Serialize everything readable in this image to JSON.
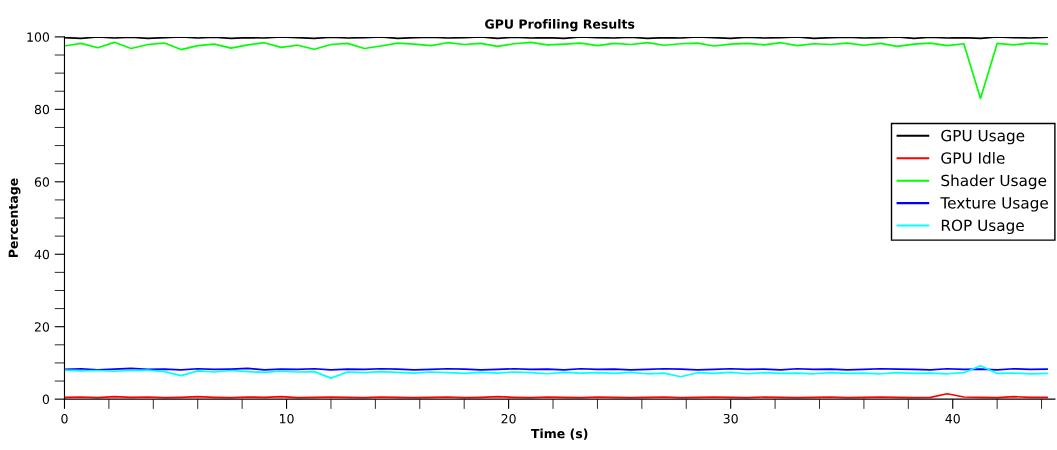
{
  "chart_data": {
    "type": "line",
    "title": "GPU Profiling Results",
    "xlabel": "Time (s)",
    "ylabel": "Percentage",
    "x": [
      0,
      0.75,
      1.5,
      2.25,
      3,
      3.75,
      4.5,
      5.25,
      6,
      6.75,
      7.5,
      8.25,
      9,
      9.75,
      10.5,
      11.25,
      12,
      12.75,
      13.5,
      14.25,
      15,
      15.75,
      16.5,
      17.25,
      18,
      18.75,
      19.5,
      20.25,
      21,
      21.75,
      22.5,
      23.25,
      24,
      24.75,
      25.5,
      26.25,
      27,
      27.75,
      28.5,
      29.25,
      30,
      30.75,
      31.5,
      32.25,
      33,
      33.75,
      34.5,
      35.25,
      36,
      36.75,
      37.5,
      38.25,
      39,
      39.75,
      40.5,
      41.25,
      42,
      42.75,
      43.5,
      44.25
    ],
    "series": [
      {
        "name": "GPU Usage",
        "color": "#000000",
        "values": [
          99.8,
          99.6,
          100,
          99.7,
          99.9,
          99.6,
          99.8,
          100,
          99.7,
          99.9,
          99.6,
          99.8,
          99.7,
          100,
          99.8,
          99.6,
          99.9,
          99.7,
          99.8,
          100,
          99.6,
          99.8,
          99.9,
          99.7,
          99.8,
          100,
          99.6,
          99.9,
          99.7,
          99.8,
          99.6,
          100,
          99.8,
          99.7,
          99.9,
          99.6,
          99.8,
          99.7,
          100,
          99.8,
          99.6,
          99.9,
          99.7,
          99.8,
          100,
          99.6,
          99.8,
          99.9,
          99.7,
          99.8,
          100,
          99.6,
          99.9,
          99.7,
          99.8,
          99.6,
          100,
          99.8,
          99.7,
          99.9
        ]
      },
      {
        "name": "GPU Idle",
        "color": "#ff0000",
        "values": [
          0.5,
          0.6,
          0.4,
          0.7,
          0.5,
          0.6,
          0.4,
          0.5,
          0.7,
          0.5,
          0.4,
          0.6,
          0.5,
          0.7,
          0.4,
          0.5,
          0.6,
          0.5,
          0.4,
          0.6,
          0.5,
          0.4,
          0.5,
          0.6,
          0.4,
          0.5,
          0.7,
          0.5,
          0.4,
          0.6,
          0.5,
          0.4,
          0.6,
          0.5,
          0.4,
          0.5,
          0.6,
          0.4,
          0.5,
          0.6,
          0.5,
          0.4,
          0.6,
          0.5,
          0.4,
          0.5,
          0.6,
          0.4,
          0.5,
          0.6,
          0.5,
          0.4,
          0.5,
          1.5,
          0.6,
          0.5,
          0.4,
          0.7,
          0.5,
          0.5
        ]
      },
      {
        "name": "Shader Usage",
        "color": "#00ff00",
        "values": [
          97.5,
          98.2,
          97.0,
          98.5,
          96.8,
          97.9,
          98.3,
          96.5,
          97.6,
          98.0,
          96.9,
          97.8,
          98.4,
          97.1,
          97.7,
          96.6,
          97.9,
          98.2,
          96.8,
          97.5,
          98.3,
          98.0,
          97.6,
          98.4,
          97.9,
          98.2,
          97.4,
          98.1,
          98.5,
          97.8,
          98.0,
          98.3,
          97.6,
          98.2,
          97.9,
          98.4,
          97.7,
          98.1,
          98.3,
          97.5,
          98.0,
          98.2,
          97.8,
          98.4,
          97.6,
          98.1,
          97.9,
          98.3,
          97.7,
          98.2,
          97.4,
          98.0,
          98.3,
          97.6,
          98.1,
          83.0,
          98.2,
          97.8,
          98.3,
          98.0
        ]
      },
      {
        "name": "Texture Usage",
        "color": "#0000ff",
        "values": [
          8.2,
          8.4,
          8.1,
          8.3,
          8.5,
          8.2,
          8.3,
          8.1,
          8.4,
          8.2,
          8.3,
          8.5,
          8.1,
          8.3,
          8.2,
          8.4,
          8.1,
          8.3,
          8.2,
          8.4,
          8.3,
          8.1,
          8.2,
          8.4,
          8.3,
          8.1,
          8.2,
          8.4,
          8.2,
          8.3,
          8.1,
          8.4,
          8.2,
          8.3,
          8.1,
          8.2,
          8.4,
          8.3,
          8.1,
          8.2,
          8.4,
          8.2,
          8.3,
          8.1,
          8.4,
          8.2,
          8.3,
          8.1,
          8.2,
          8.4,
          8.3,
          8.2,
          8.1,
          8.4,
          8.2,
          8.3,
          8.1,
          8.4,
          8.2,
          8.3
        ]
      },
      {
        "name": "ROP Usage",
        "color": "#00ffff",
        "values": [
          8.0,
          7.8,
          7.9,
          7.7,
          7.9,
          8.0,
          7.6,
          6.5,
          7.8,
          7.5,
          7.9,
          7.6,
          7.4,
          7.7,
          7.5,
          7.6,
          5.8,
          7.5,
          7.3,
          7.6,
          7.4,
          7.2,
          7.5,
          7.3,
          7.1,
          7.4,
          7.2,
          7.5,
          7.3,
          7.0,
          7.4,
          7.2,
          7.3,
          7.1,
          7.4,
          7.0,
          7.2,
          6.2,
          7.3,
          7.1,
          7.4,
          7.0,
          7.3,
          7.1,
          7.2,
          7.0,
          7.3,
          7.1,
          7.2,
          7.0,
          7.3,
          7.1,
          7.2,
          7.0,
          7.3,
          9.2,
          7.1,
          7.2,
          7.0,
          7.1
        ]
      }
    ],
    "xlim": [
      0,
      44.6
    ],
    "ylim": [
      0,
      100
    ],
    "xticks": [
      0,
      {
        "value": 2,
        "label": null
      },
      {
        "value": 4,
        "label": null
      },
      {
        "value": 6,
        "label": null
      },
      {
        "value": 8,
        "label": null
      },
      10,
      {
        "value": 12,
        "label": null
      },
      {
        "value": 14,
        "label": null
      },
      {
        "value": 16,
        "label": null
      },
      {
        "value": 18,
        "label": null
      },
      20,
      {
        "value": 22,
        "label": null
      },
      {
        "value": 24,
        "label": null
      },
      {
        "value": 26,
        "label": null
      },
      {
        "value": 28,
        "label": null
      },
      30,
      {
        "value": 32,
        "label": null
      },
      {
        "value": 34,
        "label": null
      },
      {
        "value": 36,
        "label": null
      },
      {
        "value": 38,
        "label": null
      },
      40,
      {
        "value": 42,
        "label": null
      },
      {
        "value": 44,
        "label": null
      }
    ],
    "yticks": [
      0,
      {
        "value": 5,
        "label": null
      },
      {
        "value": 10,
        "label": null
      },
      {
        "value": 15,
        "label": null
      },
      20,
      {
        "value": 25,
        "label": null
      },
      {
        "value": 30,
        "label": null
      },
      {
        "value": 35,
        "label": null
      },
      40,
      {
        "value": 45,
        "label": null
      },
      {
        "value": 50,
        "label": null
      },
      {
        "value": 55,
        "label": null
      },
      60,
      {
        "value": 65,
        "label": null
      },
      {
        "value": 70,
        "label": null
      },
      {
        "value": 75,
        "label": null
      },
      80,
      {
        "value": 85,
        "label": null
      },
      {
        "value": 90,
        "label": null
      },
      {
        "value": 95,
        "label": null
      },
      100
    ],
    "grid": false,
    "legend": "right",
    "marker": "none",
    "line_style": "solid"
  }
}
